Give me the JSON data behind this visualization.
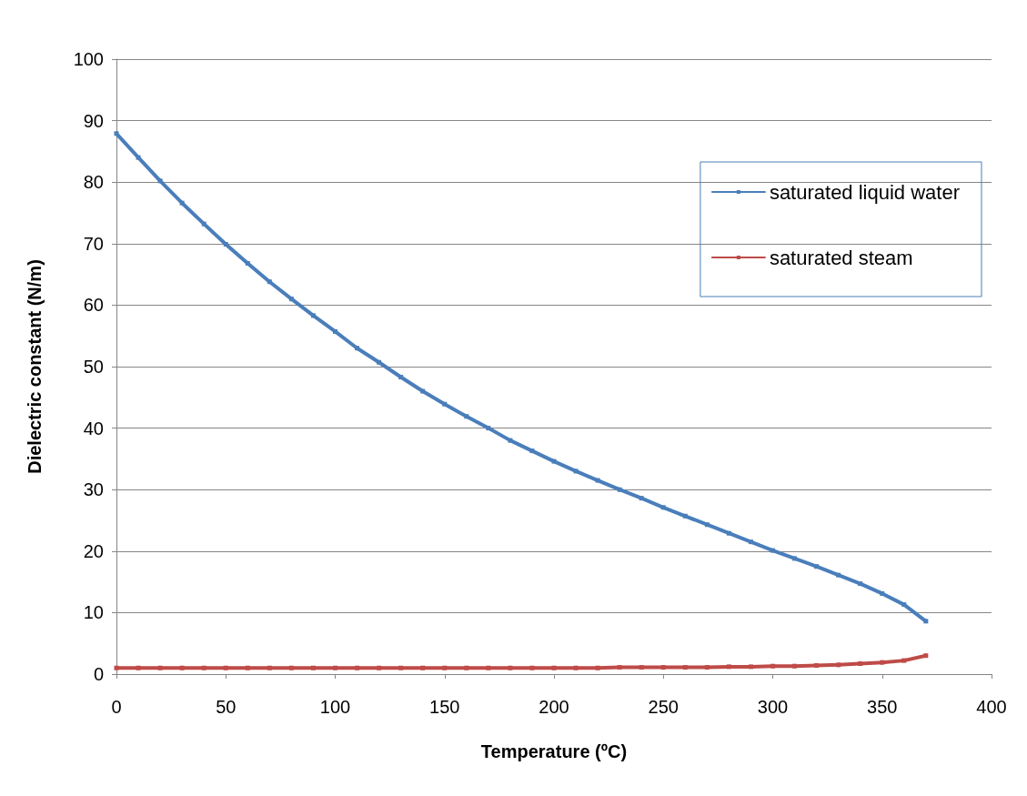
{
  "chart_data": {
    "type": "line",
    "xlabel": "Temperature (ºC)",
    "ylabel": "Dielectric constant (N/m)",
    "x": [
      0,
      10,
      20,
      30,
      40,
      50,
      60,
      70,
      80,
      90,
      100,
      110,
      120,
      130,
      140,
      150,
      160,
      170,
      180,
      190,
      200,
      210,
      220,
      230,
      240,
      250,
      260,
      270,
      280,
      290,
      300,
      310,
      320,
      330,
      340,
      350,
      360,
      370
    ],
    "series": [
      {
        "name": "saturated liquid water",
        "color": "#4a7ebb",
        "values": [
          87.9,
          84.0,
          80.2,
          76.6,
          73.2,
          69.9,
          66.8,
          63.8,
          61.0,
          58.3,
          55.7,
          53.0,
          50.7,
          48.3,
          46.0,
          43.9,
          41.9,
          40.0,
          38.0,
          36.3,
          34.6,
          33.0,
          31.5,
          30.0,
          28.6,
          27.1,
          25.7,
          24.3,
          22.9,
          21.5,
          20.1,
          18.8,
          17.5,
          16.1,
          14.7,
          13.1,
          11.3,
          8.6
        ]
      },
      {
        "name": "saturated steam",
        "color": "#be4b48",
        "values": [
          1.0,
          1.0,
          1.0,
          1.0,
          1.0,
          1.0,
          1.0,
          1.0,
          1.0,
          1.0,
          1.0,
          1.0,
          1.0,
          1.0,
          1.0,
          1.0,
          1.0,
          1.0,
          1.0,
          1.0,
          1.0,
          1.0,
          1.0,
          1.1,
          1.1,
          1.1,
          1.1,
          1.1,
          1.2,
          1.2,
          1.3,
          1.3,
          1.4,
          1.5,
          1.7,
          1.9,
          2.2,
          3.0
        ]
      }
    ],
    "xlim": [
      0,
      400
    ],
    "xticks": [
      0,
      50,
      100,
      150,
      200,
      250,
      300,
      350,
      400
    ],
    "ylim": [
      0,
      100
    ],
    "yticks": [
      0,
      10,
      20,
      30,
      40,
      50,
      60,
      70,
      80,
      90,
      100
    ],
    "grid": "y",
    "legend": "top right",
    "marker": "square",
    "line_style": "solid"
  }
}
